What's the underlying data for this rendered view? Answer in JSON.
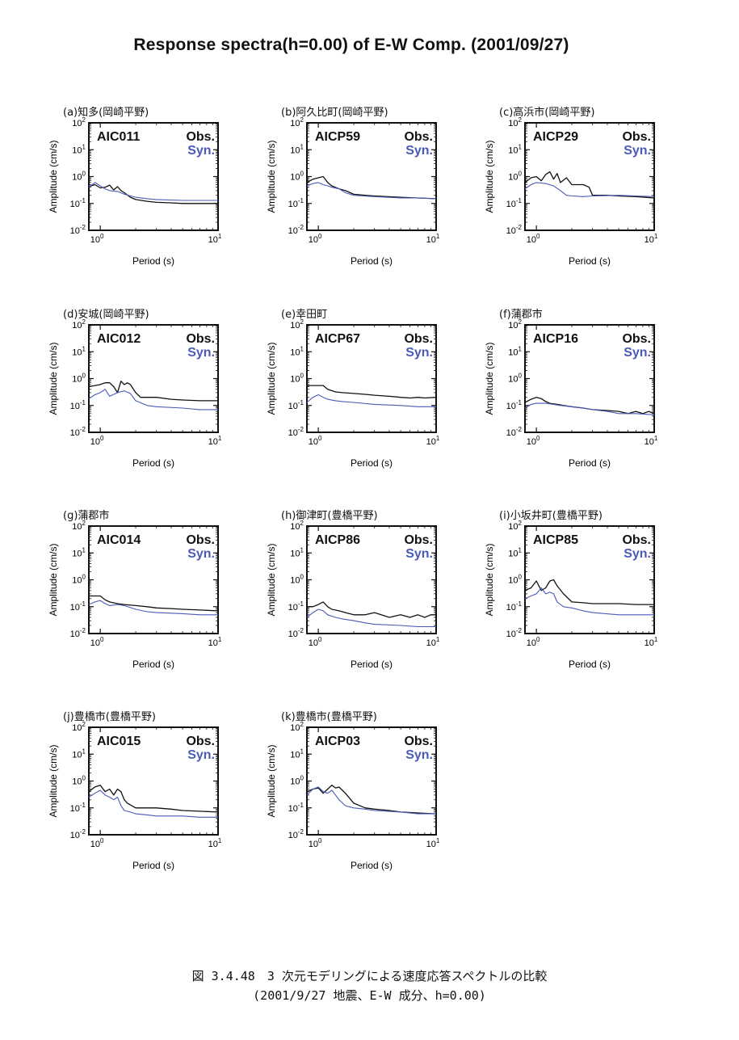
{
  "title": "Response spectra(h=0.00) of E-W Comp. (2001/09/27)",
  "caption": {
    "line1": "図 3.4.48　3 次元モデリングによる速度応答スペクトルの比較",
    "line2": "(2001/9/27 地震、E-W 成分、h=0.00)"
  },
  "legend": {
    "obs": "Obs.",
    "syn": "Syn."
  },
  "colors": {
    "obs": "#111111",
    "syn": "#4a5ab8"
  },
  "chart_data": [
    {
      "type": "line",
      "panel_label": "(a)知多(岡崎平野)",
      "station": "AIC011",
      "xlabel": "Period (s)",
      "ylabel": "Amplitude (cm/s)",
      "xscale": "log",
      "yscale": "log",
      "xlim": [
        0.8,
        10
      ],
      "ylim": [
        0.01,
        100
      ],
      "series": [
        {
          "name": "Obs.",
          "x": [
            0.8,
            0.9,
            1.0,
            1.1,
            1.2,
            1.3,
            1.4,
            1.5,
            1.6,
            1.8,
            2.0,
            2.5,
            3,
            4,
            5,
            7,
            10
          ],
          "y": [
            0.42,
            0.5,
            0.38,
            0.4,
            0.48,
            0.32,
            0.42,
            0.3,
            0.25,
            0.17,
            0.14,
            0.12,
            0.11,
            0.105,
            0.1,
            0.1,
            0.1
          ]
        },
        {
          "name": "Syn.",
          "x": [
            0.8,
            0.9,
            1.0,
            1.1,
            1.2,
            1.4,
            1.6,
            2.0,
            2.5,
            3,
            5,
            7,
            10
          ],
          "y": [
            0.4,
            0.6,
            0.45,
            0.35,
            0.3,
            0.28,
            0.22,
            0.17,
            0.15,
            0.14,
            0.13,
            0.13,
            0.13
          ]
        }
      ]
    },
    {
      "type": "line",
      "panel_label": "(b)阿久比町(岡崎平野)",
      "station": "AICP59",
      "xlabel": "Period (s)",
      "ylabel": "Amplitude (cm/s)",
      "xscale": "log",
      "yscale": "log",
      "xlim": [
        0.8,
        10
      ],
      "ylim": [
        0.01,
        100
      ],
      "series": [
        {
          "name": "Obs.",
          "x": [
            0.8,
            0.9,
            1.0,
            1.1,
            1.2,
            1.3,
            1.5,
            1.7,
            2.0,
            2.5,
            3,
            5,
            7,
            10
          ],
          "y": [
            0.6,
            0.8,
            0.9,
            1.0,
            0.6,
            0.45,
            0.35,
            0.3,
            0.22,
            0.2,
            0.19,
            0.17,
            0.16,
            0.15
          ]
        },
        {
          "name": "Syn.",
          "x": [
            0.8,
            0.9,
            1.0,
            1.1,
            1.2,
            1.3,
            1.5,
            1.7,
            2.0,
            3,
            5,
            7,
            10
          ],
          "y": [
            0.45,
            0.55,
            0.6,
            0.5,
            0.45,
            0.4,
            0.35,
            0.25,
            0.2,
            0.18,
            0.16,
            0.16,
            0.15
          ]
        }
      ]
    },
    {
      "type": "line",
      "panel_label": "(c)高浜市(岡崎平野)",
      "station": "AICP29",
      "xlabel": "Period (s)",
      "ylabel": "Amplitude (cm/s)",
      "xscale": "log",
      "yscale": "log",
      "xlim": [
        0.8,
        10
      ],
      "ylim": [
        0.01,
        100
      ],
      "series": [
        {
          "name": "Obs.",
          "x": [
            0.8,
            0.9,
            1.0,
            1.1,
            1.2,
            1.3,
            1.4,
            1.5,
            1.6,
            1.8,
            2.0,
            2.2,
            2.5,
            2.8,
            3,
            4,
            5,
            7,
            10
          ],
          "y": [
            0.6,
            0.9,
            1.0,
            0.7,
            1.2,
            1.5,
            0.8,
            1.3,
            0.6,
            0.9,
            0.5,
            0.5,
            0.5,
            0.4,
            0.2,
            0.2,
            0.19,
            0.18,
            0.16
          ]
        },
        {
          "name": "Syn.",
          "x": [
            0.8,
            0.9,
            1.0,
            1.2,
            1.4,
            1.6,
            1.8,
            2.0,
            2.5,
            3,
            5,
            7,
            10
          ],
          "y": [
            0.35,
            0.5,
            0.6,
            0.55,
            0.45,
            0.3,
            0.2,
            0.19,
            0.18,
            0.19,
            0.2,
            0.19,
            0.18
          ]
        }
      ]
    },
    {
      "type": "line",
      "panel_label": "(d)安城(岡崎平野)",
      "station": "AIC012",
      "xlabel": "Period (s)",
      "ylabel": "Amplitude (cm/s)",
      "xscale": "log",
      "yscale": "log",
      "xlim": [
        0.8,
        10
      ],
      "ylim": [
        0.01,
        100
      ],
      "series": [
        {
          "name": "Obs.",
          "x": [
            0.8,
            0.9,
            1.0,
            1.1,
            1.2,
            1.3,
            1.4,
            1.5,
            1.6,
            1.7,
            1.8,
            2.0,
            2.2,
            2.5,
            3,
            4,
            5,
            7,
            10
          ],
          "y": [
            0.5,
            0.55,
            0.6,
            0.7,
            0.7,
            0.5,
            0.3,
            0.8,
            0.6,
            0.7,
            0.6,
            0.3,
            0.2,
            0.2,
            0.2,
            0.17,
            0.16,
            0.15,
            0.15
          ]
        },
        {
          "name": "Syn.",
          "x": [
            0.8,
            0.9,
            1.0,
            1.1,
            1.2,
            1.4,
            1.6,
            1.8,
            2.0,
            2.5,
            3,
            5,
            7,
            10
          ],
          "y": [
            0.18,
            0.25,
            0.3,
            0.4,
            0.22,
            0.3,
            0.35,
            0.28,
            0.15,
            0.1,
            0.09,
            0.08,
            0.07,
            0.07
          ]
        }
      ]
    },
    {
      "type": "line",
      "panel_label": "(e)幸田町",
      "station": "AICP67",
      "xlabel": "Period (s)",
      "ylabel": "Amplitude (cm/s)",
      "xscale": "log",
      "yscale": "log",
      "xlim": [
        0.8,
        10
      ],
      "ylim": [
        0.01,
        100
      ],
      "series": [
        {
          "name": "Obs.",
          "x": [
            0.8,
            0.9,
            1.0,
            1.1,
            1.2,
            1.4,
            1.6,
            2.0,
            2.5,
            3,
            4,
            5,
            6,
            7,
            8,
            10
          ],
          "y": [
            0.55,
            0.55,
            0.55,
            0.55,
            0.4,
            0.32,
            0.3,
            0.28,
            0.26,
            0.24,
            0.22,
            0.2,
            0.19,
            0.2,
            0.19,
            0.2
          ]
        },
        {
          "name": "Syn.",
          "x": [
            0.8,
            0.9,
            1.0,
            1.1,
            1.2,
            1.4,
            1.6,
            2.0,
            3,
            5,
            7,
            10
          ],
          "y": [
            0.13,
            0.2,
            0.25,
            0.2,
            0.17,
            0.15,
            0.14,
            0.13,
            0.11,
            0.1,
            0.09,
            0.09
          ]
        }
      ]
    },
    {
      "type": "line",
      "panel_label": "(f)蒲郡市",
      "station": "AICP16",
      "xlabel": "Period (s)",
      "ylabel": "Amplitude (cm/s)",
      "xscale": "log",
      "yscale": "log",
      "xlim": [
        0.8,
        10
      ],
      "ylim": [
        0.01,
        100
      ],
      "series": [
        {
          "name": "Obs.",
          "x": [
            0.8,
            0.9,
            1.0,
            1.1,
            1.2,
            1.3,
            1.5,
            1.7,
            2.0,
            2.5,
            3,
            4,
            5,
            6,
            7,
            8,
            9,
            10
          ],
          "y": [
            0.13,
            0.17,
            0.2,
            0.18,
            0.14,
            0.12,
            0.11,
            0.1,
            0.09,
            0.08,
            0.07,
            0.065,
            0.06,
            0.05,
            0.06,
            0.05,
            0.06,
            0.05
          ]
        },
        {
          "name": "Syn.",
          "x": [
            0.8,
            0.9,
            1.0,
            1.2,
            1.4,
            1.6,
            2.0,
            2.5,
            3,
            4,
            5,
            7,
            10
          ],
          "y": [
            0.08,
            0.11,
            0.12,
            0.12,
            0.11,
            0.1,
            0.09,
            0.08,
            0.07,
            0.06,
            0.05,
            0.05,
            0.045
          ]
        }
      ]
    },
    {
      "type": "line",
      "panel_label": "(g)蒲郡市",
      "station": "AIC014",
      "xlabel": "Period (s)",
      "ylabel": "Amplitude (cm/s)",
      "xscale": "log",
      "yscale": "log",
      "xlim": [
        0.8,
        10
      ],
      "ylim": [
        0.01,
        100
      ],
      "series": [
        {
          "name": "Obs.",
          "x": [
            0.8,
            0.9,
            1.0,
            1.1,
            1.2,
            1.4,
            1.6,
            2.0,
            2.5,
            3,
            4,
            5,
            7,
            10
          ],
          "y": [
            0.25,
            0.25,
            0.25,
            0.18,
            0.15,
            0.13,
            0.12,
            0.11,
            0.1,
            0.09,
            0.085,
            0.08,
            0.075,
            0.07
          ]
        },
        {
          "name": "Syn.",
          "x": [
            0.8,
            0.9,
            1.0,
            1.1,
            1.2,
            1.4,
            1.6,
            2.0,
            2.5,
            3,
            5,
            7,
            10
          ],
          "y": [
            0.12,
            0.15,
            0.17,
            0.13,
            0.11,
            0.12,
            0.11,
            0.08,
            0.065,
            0.06,
            0.055,
            0.05,
            0.05
          ]
        }
      ]
    },
    {
      "type": "line",
      "panel_label": "(h)御津町(豊橋平野)",
      "station": "AICP86",
      "xlabel": "Period (s)",
      "ylabel": "Amplitude (cm/s)",
      "xscale": "log",
      "yscale": "log",
      "xlim": [
        0.8,
        10
      ],
      "ylim": [
        0.01,
        100
      ],
      "series": [
        {
          "name": "Obs.",
          "x": [
            0.8,
            0.9,
            1.0,
            1.1,
            1.2,
            1.3,
            1.5,
            1.7,
            2.0,
            2.5,
            3,
            4,
            5,
            6,
            7,
            8,
            9,
            10
          ],
          "y": [
            0.1,
            0.1,
            0.12,
            0.15,
            0.1,
            0.08,
            0.07,
            0.06,
            0.05,
            0.05,
            0.06,
            0.04,
            0.05,
            0.04,
            0.05,
            0.04,
            0.05,
            0.05
          ]
        },
        {
          "name": "Syn.",
          "x": [
            0.8,
            0.9,
            1.0,
            1.1,
            1.2,
            1.4,
            1.6,
            2.0,
            2.5,
            3,
            5,
            7,
            10
          ],
          "y": [
            0.04,
            0.06,
            0.08,
            0.07,
            0.05,
            0.04,
            0.035,
            0.03,
            0.025,
            0.022,
            0.02,
            0.018,
            0.018
          ]
        }
      ]
    },
    {
      "type": "line",
      "panel_label": "(i)小坂井町(豊橋平野)",
      "station": "AICP85",
      "xlabel": "Period (s)",
      "ylabel": "Amplitude (cm/s)",
      "xscale": "log",
      "yscale": "log",
      "xlim": [
        0.8,
        10
      ],
      "ylim": [
        0.01,
        100
      ],
      "series": [
        {
          "name": "Obs.",
          "x": [
            0.8,
            0.9,
            1.0,
            1.1,
            1.2,
            1.3,
            1.4,
            1.5,
            1.7,
            2.0,
            2.5,
            3,
            5,
            7,
            10
          ],
          "y": [
            0.4,
            0.5,
            0.9,
            0.4,
            0.5,
            0.9,
            1.0,
            0.6,
            0.3,
            0.15,
            0.14,
            0.13,
            0.13,
            0.12,
            0.12
          ]
        },
        {
          "name": "Syn.",
          "x": [
            0.8,
            0.9,
            1.0,
            1.1,
            1.2,
            1.3,
            1.4,
            1.5,
            1.7,
            2.0,
            2.5,
            3,
            5,
            7,
            10
          ],
          "y": [
            0.2,
            0.25,
            0.3,
            0.5,
            0.3,
            0.35,
            0.3,
            0.15,
            0.1,
            0.09,
            0.07,
            0.06,
            0.05,
            0.05,
            0.05
          ]
        }
      ]
    },
    {
      "type": "line",
      "panel_label": "(j)豊橋市(豊橋平野)",
      "station": "AIC015",
      "xlabel": "Period (s)",
      "ylabel": "Amplitude (cm/s)",
      "xscale": "log",
      "yscale": "log",
      "xlim": [
        0.8,
        10
      ],
      "ylim": [
        0.01,
        100
      ],
      "series": [
        {
          "name": "Obs.",
          "x": [
            0.8,
            0.9,
            1.0,
            1.1,
            1.2,
            1.3,
            1.4,
            1.5,
            1.6,
            1.7,
            2.0,
            2.5,
            3,
            4,
            5,
            7,
            10
          ],
          "y": [
            0.4,
            0.6,
            0.7,
            0.4,
            0.5,
            0.3,
            0.5,
            0.4,
            0.2,
            0.15,
            0.1,
            0.1,
            0.1,
            0.09,
            0.08,
            0.075,
            0.07
          ]
        },
        {
          "name": "Syn.",
          "x": [
            0.8,
            0.9,
            1.0,
            1.1,
            1.2,
            1.3,
            1.4,
            1.5,
            1.6,
            1.8,
            2.0,
            2.5,
            3,
            5,
            7,
            10
          ],
          "y": [
            0.25,
            0.35,
            0.45,
            0.3,
            0.25,
            0.2,
            0.25,
            0.12,
            0.08,
            0.07,
            0.06,
            0.055,
            0.05,
            0.05,
            0.045,
            0.045
          ]
        }
      ]
    },
    {
      "type": "line",
      "panel_label": "(k)豊橋市(豊橋平野)",
      "station": "AICP03",
      "xlabel": "Period (s)",
      "ylabel": "Amplitude (cm/s)",
      "xscale": "log",
      "yscale": "log",
      "xlim": [
        0.8,
        10
      ],
      "ylim": [
        0.01,
        100
      ],
      "series": [
        {
          "name": "Obs.",
          "x": [
            0.8,
            0.9,
            1.0,
            1.1,
            1.2,
            1.3,
            1.4,
            1.5,
            1.6,
            1.7,
            2.0,
            2.5,
            3,
            4,
            5,
            7,
            10
          ],
          "y": [
            0.4,
            0.5,
            0.55,
            0.35,
            0.5,
            0.7,
            0.55,
            0.6,
            0.45,
            0.35,
            0.15,
            0.1,
            0.09,
            0.08,
            0.07,
            0.065,
            0.06
          ]
        },
        {
          "name": "Syn.",
          "x": [
            0.8,
            0.9,
            1.0,
            1.1,
            1.2,
            1.3,
            1.4,
            1.5,
            1.7,
            2.0,
            2.5,
            3,
            5,
            7,
            10
          ],
          "y": [
            0.3,
            0.5,
            0.6,
            0.4,
            0.35,
            0.45,
            0.3,
            0.2,
            0.12,
            0.1,
            0.09,
            0.08,
            0.07,
            0.06,
            0.06
          ]
        }
      ]
    }
  ]
}
